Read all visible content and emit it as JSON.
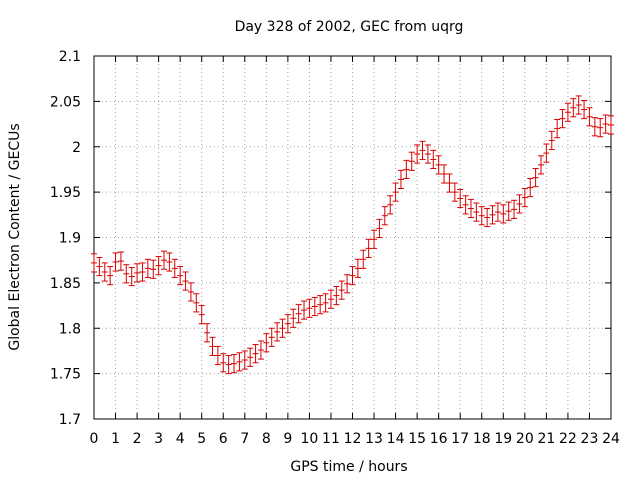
{
  "chart_data": {
    "type": "scatter",
    "title": "Day 328 of 2002, GEC from uqrg",
    "xlabel": "GPS time / hours",
    "ylabel": "Global Electron Content / GECUs",
    "xlim": [
      0,
      24
    ],
    "ylim": [
      1.7,
      2.1
    ],
    "x_ticks": [
      0,
      1,
      2,
      3,
      4,
      5,
      6,
      7,
      8,
      9,
      10,
      11,
      12,
      13,
      14,
      15,
      16,
      17,
      18,
      19,
      20,
      21,
      22,
      23,
      24
    ],
    "y_ticks": [
      1.7,
      1.75,
      1.8,
      1.85,
      1.9,
      1.95,
      2,
      2.05,
      2.1
    ],
    "x_tick_labels": [
      "0",
      "1",
      "2",
      "3",
      "4",
      "5",
      "6",
      "7",
      "8",
      "9",
      "10",
      "11",
      "12",
      "13",
      "14",
      "15",
      "16",
      "17",
      "18",
      "19",
      "20",
      "21",
      "22",
      "23",
      "24"
    ],
    "y_tick_labels": [
      "1.7",
      "1.75",
      "1.8",
      "1.85",
      "1.9",
      "1.95",
      "2",
      "2.05",
      "2.1"
    ],
    "grid": true,
    "marker_color": "#d60000",
    "error_bar": 0.01,
    "series": [
      {
        "x": [
          0,
          0.25,
          0.5,
          0.75,
          1,
          1.25,
          1.5,
          1.75,
          2,
          2.25,
          2.5,
          2.75,
          3,
          3.25,
          3.5,
          3.75,
          4,
          4.25,
          4.5,
          4.75,
          5,
          5.25,
          5.5,
          5.75,
          6,
          6.25,
          6.5,
          6.75,
          7,
          7.25,
          7.5,
          7.75,
          8,
          8.25,
          8.5,
          8.75,
          9,
          9.25,
          9.5,
          9.75,
          10,
          10.25,
          10.5,
          10.75,
          11,
          11.25,
          11.5,
          11.75,
          12,
          12.25,
          12.5,
          12.75,
          13,
          13.25,
          13.5,
          13.75,
          14,
          14.25,
          14.5,
          14.75,
          15,
          15.25,
          15.5,
          15.75,
          16,
          16.25,
          16.5,
          16.75,
          17,
          17.25,
          17.5,
          17.75,
          18,
          18.25,
          18.5,
          18.75,
          19,
          19.25,
          19.5,
          19.75,
          20,
          20.25,
          20.5,
          20.75,
          21,
          21.25,
          21.5,
          21.75,
          22,
          22.25,
          22.5,
          22.75,
          23,
          23.25,
          23.5,
          23.75,
          24
        ],
        "y": [
          1.872,
          1.868,
          1.862,
          1.858,
          1.873,
          1.874,
          1.86,
          1.857,
          1.861,
          1.862,
          1.866,
          1.865,
          1.869,
          1.875,
          1.873,
          1.866,
          1.858,
          1.852,
          1.84,
          1.828,
          1.815,
          1.795,
          1.78,
          1.77,
          1.762,
          1.76,
          1.761,
          1.763,
          1.765,
          1.768,
          1.772,
          1.776,
          1.784,
          1.79,
          1.796,
          1.8,
          1.805,
          1.811,
          1.816,
          1.82,
          1.822,
          1.824,
          1.826,
          1.828,
          1.832,
          1.836,
          1.842,
          1.849,
          1.858,
          1.866,
          1.876,
          1.888,
          1.898,
          1.91,
          1.924,
          1.936,
          1.95,
          1.964,
          1.975,
          1.984,
          1.992,
          1.996,
          1.992,
          1.986,
          1.98,
          1.97,
          1.96,
          1.95,
          1.943,
          1.936,
          1.932,
          1.928,
          1.924,
          1.922,
          1.925,
          1.928,
          1.926,
          1.929,
          1.931,
          1.937,
          1.944,
          1.955,
          1.966,
          1.98,
          1.993,
          2.007,
          2.02,
          2.031,
          2.038,
          2.043,
          2.046,
          2.041,
          2.033,
          2.022,
          2.021,
          2.025,
          2.024
        ]
      }
    ]
  }
}
